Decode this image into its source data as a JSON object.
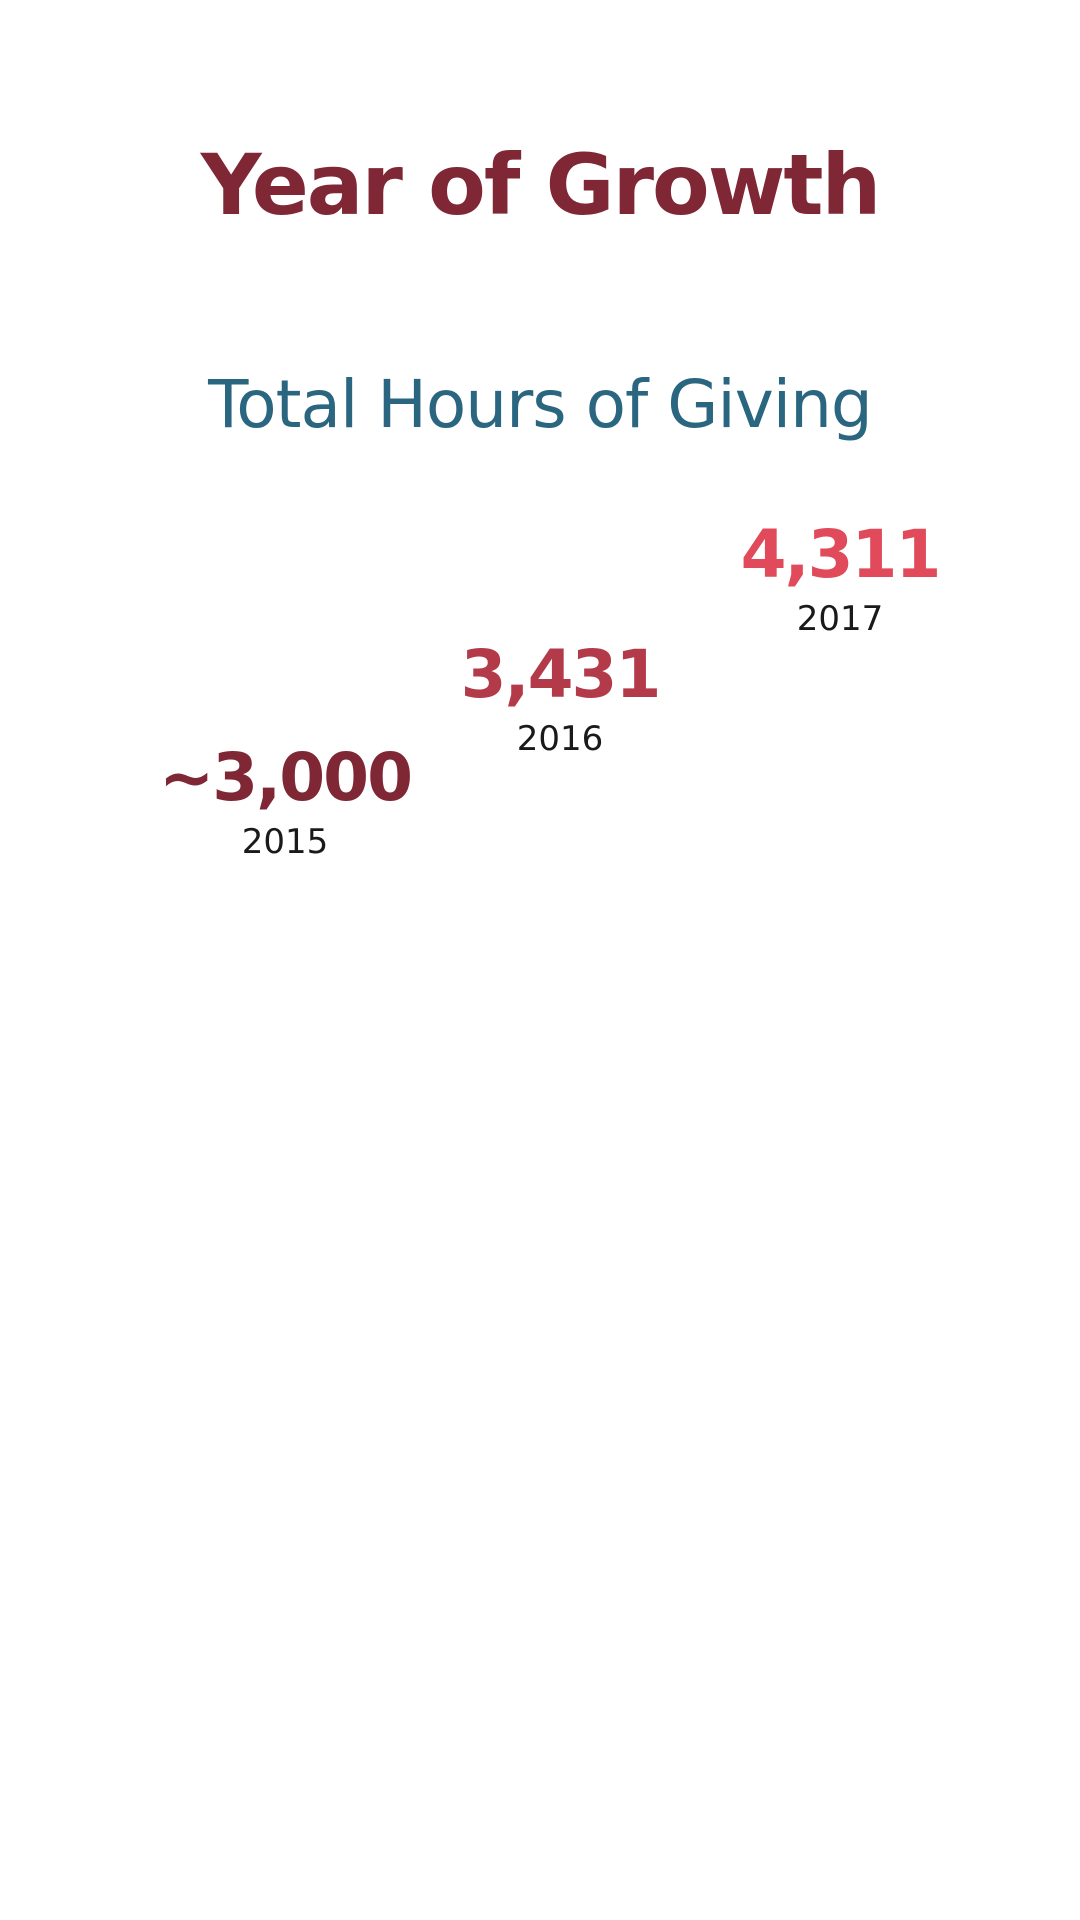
{
  "header": {
    "title": "Year of Growth",
    "subtitle": "Total Hours of Giving"
  },
  "stats": [
    {
      "value": "~3,000",
      "year": "2015",
      "color": "#7f2734"
    },
    {
      "value": "3,431",
      "year": "2016",
      "color": "#b33a48"
    },
    {
      "value": "4,311",
      "year": "2017",
      "color": "#e04a5a"
    }
  ],
  "colors": {
    "title": "#7f2734",
    "subtitle": "#2b6680",
    "year_text": "#1a1a1a",
    "background": "#ffffff"
  }
}
